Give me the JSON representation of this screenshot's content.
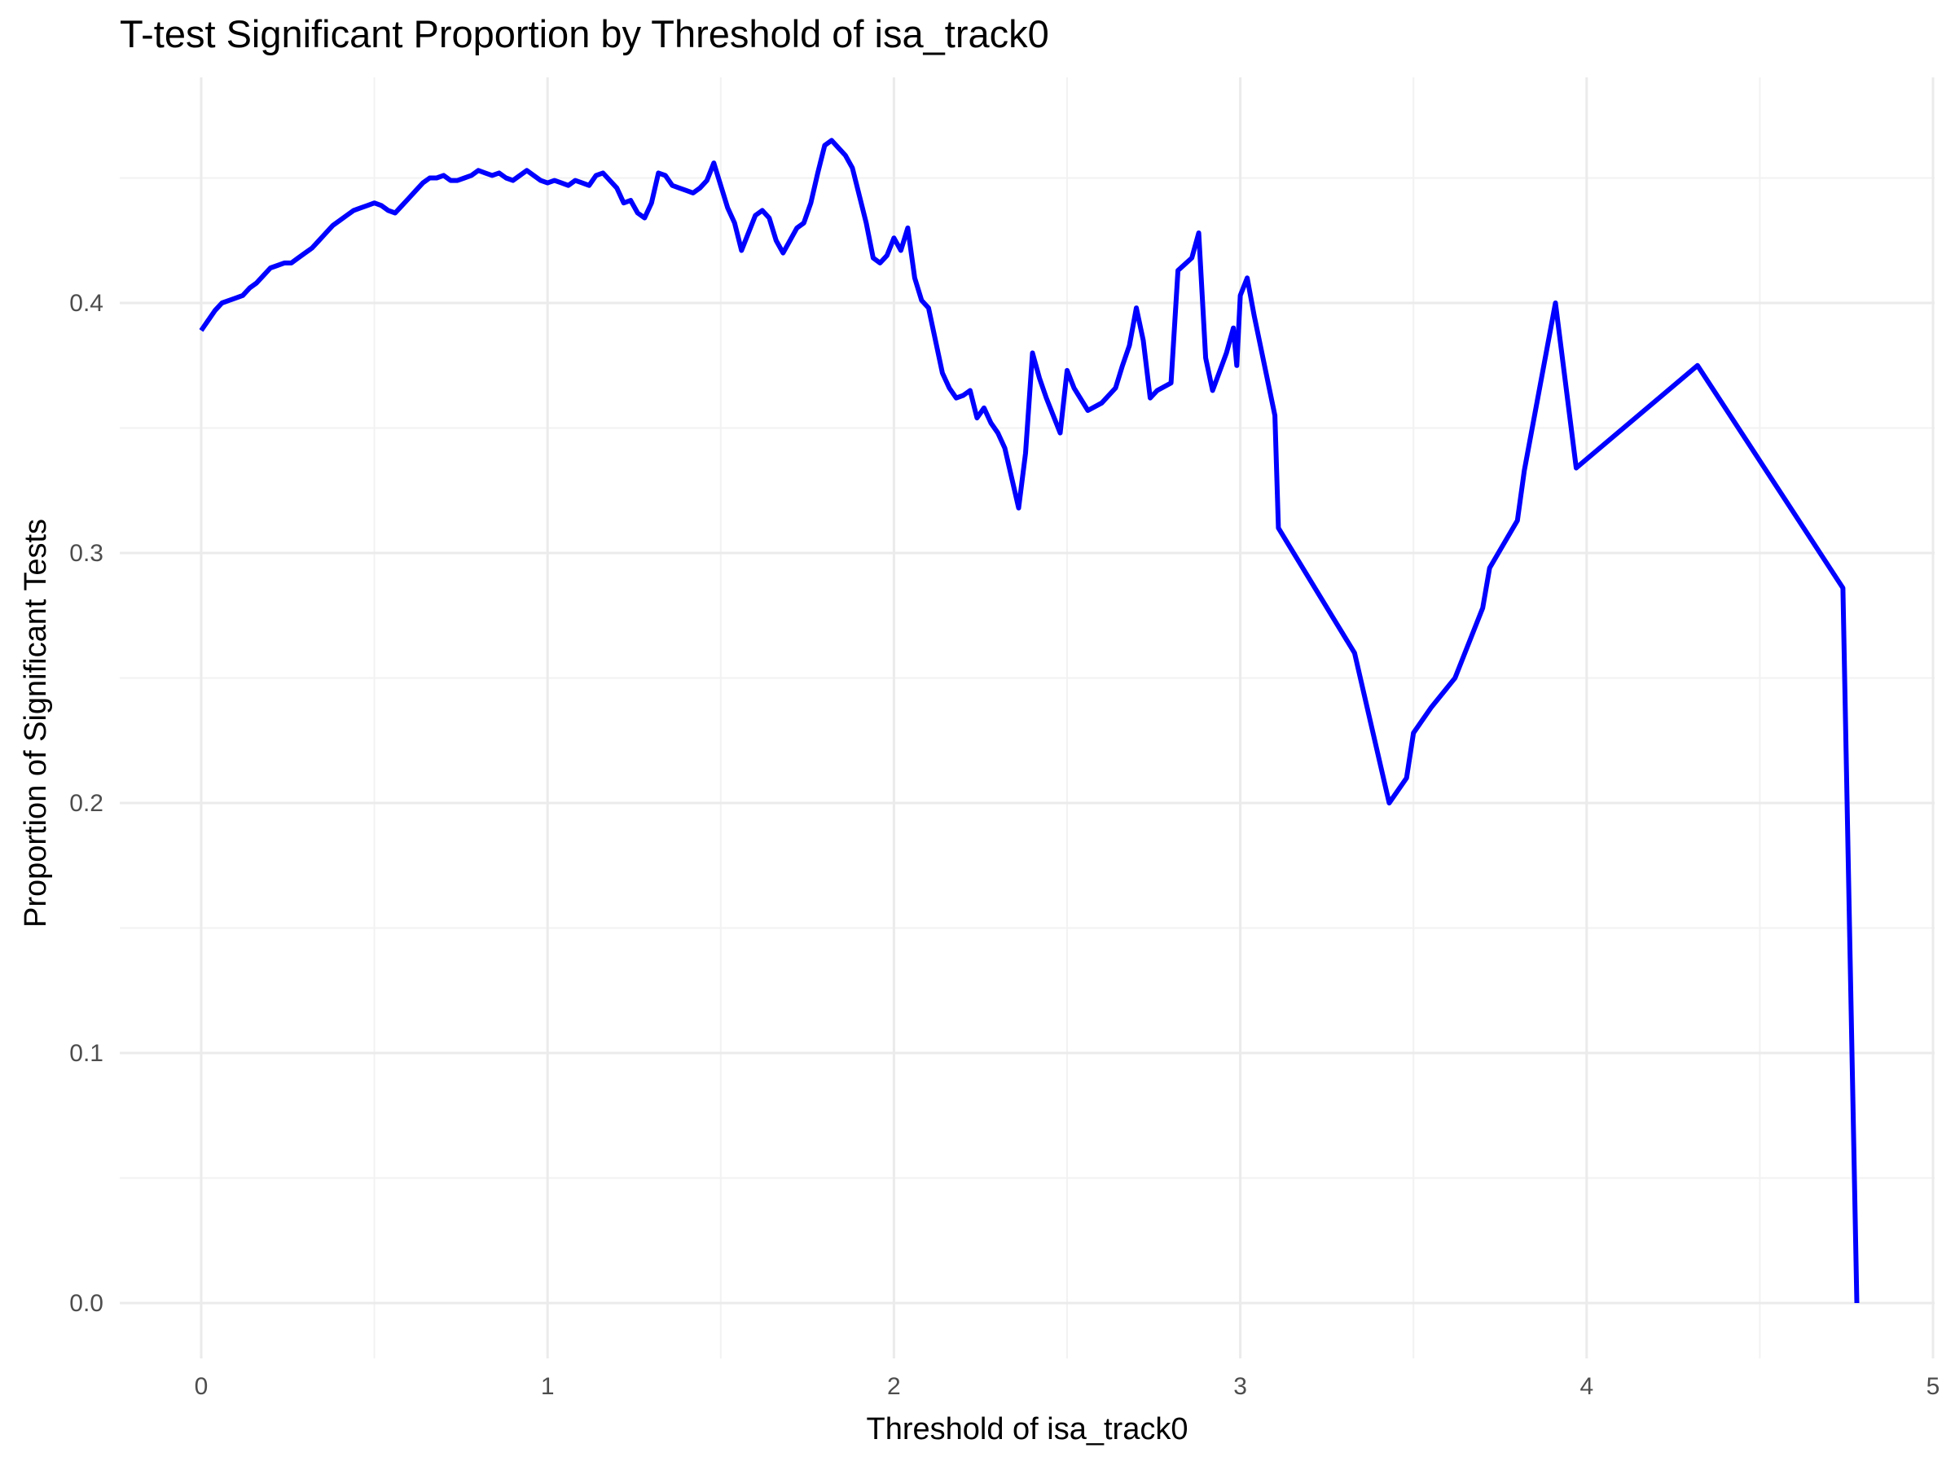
{
  "chart_data": {
    "type": "line",
    "title": "T-test Significant Proportion by Threshold of isa_track0",
    "xlabel": "Threshold of isa_track0",
    "ylabel": "Proportion of Significant Tests",
    "xlim": [
      -0.24,
      5.0
    ],
    "ylim": [
      -0.018,
      0.49
    ],
    "x_ticks": [
      0,
      1,
      2,
      3,
      4,
      5
    ],
    "x_tick_labels": [
      "0",
      "1",
      "2",
      "3",
      "4",
      "5"
    ],
    "y_ticks": [
      0.0,
      0.1,
      0.2,
      0.3,
      0.4
    ],
    "y_tick_labels": [
      "0.0",
      "0.1",
      "0.2",
      "0.3",
      "0.4"
    ],
    "grid": true,
    "legend": "none",
    "series": [
      {
        "color": "#0000ff",
        "x": [
          0.0,
          0.01,
          0.02,
          0.04,
          0.06,
          0.08,
          0.1,
          0.12,
          0.14,
          0.16,
          0.18,
          0.2,
          0.22,
          0.24,
          0.26,
          0.28,
          0.3,
          0.32,
          0.34,
          0.36,
          0.38,
          0.4,
          0.42,
          0.44,
          0.46,
          0.48,
          0.5,
          0.52,
          0.54,
          0.56,
          0.58,
          0.6,
          0.62,
          0.64,
          0.66,
          0.68,
          0.7,
          0.72,
          0.74,
          0.76,
          0.78,
          0.8,
          0.82,
          0.84,
          0.86,
          0.88,
          0.9,
          0.92,
          0.94,
          0.96,
          0.98,
          1.0,
          1.02,
          1.04,
          1.06,
          1.08,
          1.1,
          1.12,
          1.14,
          1.16,
          1.18,
          1.2,
          1.22,
          1.24,
          1.26,
          1.28,
          1.3,
          1.32,
          1.34,
          1.36,
          1.38,
          1.4,
          1.42,
          1.44,
          1.46,
          1.48,
          1.5,
          1.52,
          1.54,
          1.56,
          1.58,
          1.6,
          1.62,
          1.64,
          1.66,
          1.68,
          1.7,
          1.72,
          1.74,
          1.76,
          1.78,
          1.8,
          1.82,
          1.84,
          1.86,
          1.88,
          1.9,
          1.92,
          1.94,
          1.96,
          1.98,
          2.0,
          2.02,
          2.04,
          2.06,
          2.08,
          2.1,
          2.12,
          2.14,
          2.16,
          2.18,
          2.2,
          2.22,
          2.24,
          2.26,
          2.28,
          2.3,
          2.32,
          2.34,
          2.36,
          2.38,
          2.4,
          2.42,
          2.44,
          2.46,
          2.48,
          2.5,
          2.52,
          2.56,
          2.6,
          2.64,
          2.66,
          2.68,
          2.7,
          2.72,
          2.74,
          2.76,
          2.8,
          2.82,
          2.86,
          2.88,
          2.9,
          2.92,
          2.96,
          2.98,
          2.99,
          3.0,
          3.02,
          3.04,
          3.1,
          3.11,
          3.22,
          3.33,
          3.43,
          3.48,
          3.5,
          3.55,
          3.62,
          3.7,
          3.72,
          3.8,
          3.82,
          3.91,
          3.97,
          4.32,
          4.74,
          4.78
        ],
        "y": [
          0.389,
          0.391,
          0.393,
          0.397,
          0.4,
          0.401,
          0.402,
          0.403,
          0.406,
          0.408,
          0.411,
          0.414,
          0.415,
          0.416,
          0.416,
          0.418,
          0.42,
          0.422,
          0.425,
          0.428,
          0.431,
          0.433,
          0.435,
          0.437,
          0.438,
          0.439,
          0.44,
          0.439,
          0.437,
          0.436,
          0.439,
          0.442,
          0.445,
          0.448,
          0.45,
          0.45,
          0.451,
          0.449,
          0.449,
          0.45,
          0.451,
          0.453,
          0.452,
          0.451,
          0.452,
          0.45,
          0.449,
          0.451,
          0.453,
          0.451,
          0.449,
          0.448,
          0.449,
          0.448,
          0.447,
          0.449,
          0.448,
          0.447,
          0.451,
          0.452,
          0.449,
          0.446,
          0.44,
          0.441,
          0.436,
          0.434,
          0.44,
          0.452,
          0.451,
          0.447,
          0.446,
          0.445,
          0.444,
          0.446,
          0.449,
          0.456,
          0.447,
          0.438,
          0.432,
          0.421,
          0.428,
          0.435,
          0.437,
          0.434,
          0.425,
          0.42,
          0.425,
          0.43,
          0.432,
          0.44,
          0.452,
          0.463,
          0.465,
          0.462,
          0.459,
          0.454,
          0.443,
          0.432,
          0.418,
          0.416,
          0.419,
          0.426,
          0.421,
          0.43,
          0.41,
          0.401,
          0.398,
          0.385,
          0.372,
          0.366,
          0.362,
          0.363,
          0.365,
          0.354,
          0.358,
          0.352,
          0.348,
          0.342,
          0.33,
          0.318,
          0.34,
          0.38,
          0.37,
          0.362,
          0.355,
          0.348,
          0.373,
          0.366,
          0.357,
          0.36,
          0.366,
          0.375,
          0.383,
          0.398,
          0.385,
          0.362,
          0.365,
          0.368,
          0.413,
          0.418,
          0.428,
          0.378,
          0.365,
          0.38,
          0.39,
          0.375,
          0.403,
          0.41,
          0.395,
          0.355,
          0.31,
          0.285,
          0.26,
          0.2,
          0.21,
          0.228,
          0.238,
          0.25,
          0.278,
          0.294,
          0.313,
          0.333,
          0.4,
          0.334,
          0.375,
          0.286,
          0.0
        ]
      }
    ]
  }
}
